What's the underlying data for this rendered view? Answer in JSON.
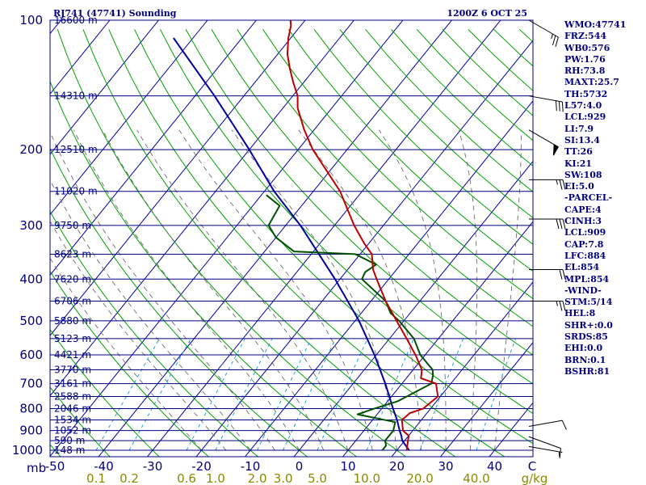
{
  "title": "RJ741 (47741) Sounding",
  "valid_time": "1200Z  6 OCT 25",
  "indices": [
    "WMO:47741",
    "FRZ:544",
    "WB0:576",
    "PW:1.76",
    "RH:73.8",
    "MAXT:25.7",
    "TH:5732",
    "L57:4.0",
    "LCL:929",
    "LI:7.9",
    "SI:13.4",
    "TT:26",
    "KI:21",
    "SW:108",
    "EI:5.0",
    "-PARCEL-",
    "CAPE:4",
    "CINH:3",
    "LCL:909",
    "CAP:7.8",
    "LFC:884",
    "EL:854",
    "MPL:854",
    "-WIND-",
    "STM:5/14",
    "HEL:8",
    "SHR+:0.0",
    "SRDS:85",
    "EHI:0.0",
    "BRN:0.1",
    "BSHR:81"
  ],
  "colors": {
    "frame": "#000080",
    "isobar": "#000080",
    "isotherm": "#0000a0",
    "dry_adiabat": "#00a000",
    "moist_adiabat": "#6b6b6b",
    "mixing_ratio": "#1fa0e0",
    "temperature": "#c00000",
    "dewpoint": "#005000",
    "parcel": "#0000a0",
    "wind": "#000000",
    "mixing_label": "#8a8a00"
  },
  "chart_data": {
    "type": "skew-t log-p",
    "title": "RJ741 (47741) Sounding",
    "x_unit_label": "C",
    "pressure_unit_label": "mb",
    "mixing_unit_label": "g/kg",
    "pressure_levels": [
      1000,
      900,
      800,
      700,
      600,
      500,
      400,
      300,
      200,
      100
    ],
    "pressure_labels": [
      "1000",
      "900",
      "800",
      "700",
      "600",
      "500",
      "400",
      "300",
      "200",
      "100"
    ],
    "height_levels": [
      {
        "p": 1000,
        "label": "148 m"
      },
      {
        "p": 950,
        "label": "590 m"
      },
      {
        "p": 900,
        "label": "1052 m"
      },
      {
        "p": 850,
        "label": "1534 m"
      },
      {
        "p": 800,
        "label": "2046 m"
      },
      {
        "p": 750,
        "label": "2588 m"
      },
      {
        "p": 700,
        "label": "3161 m"
      },
      {
        "p": 650,
        "label": "3770 m"
      },
      {
        "p": 600,
        "label": "4421 m"
      },
      {
        "p": 550,
        "label": "5123 m"
      },
      {
        "p": 500,
        "label": "5880 m"
      },
      {
        "p": 450,
        "label": "6706 m"
      },
      {
        "p": 400,
        "label": "7620 m"
      },
      {
        "p": 350,
        "label": "8623 m"
      },
      {
        "p": 300,
        "label": "9750 m"
      },
      {
        "p": 250,
        "label": "11020 m"
      },
      {
        "p": 200,
        "label": "12510 m"
      },
      {
        "p": 150,
        "label": "14310 m"
      },
      {
        "p": 100,
        "label": "16600 m"
      }
    ],
    "temperature_ticks": [
      -50,
      -40,
      -30,
      -20,
      -10,
      0,
      10,
      20,
      30,
      40
    ],
    "temperature_tick_labels": [
      "-50",
      "-40",
      "-30",
      "-20",
      "-10",
      "0",
      "10",
      "20",
      "30",
      "40"
    ],
    "mixing_ratios": [
      0.1,
      0.2,
      0.6,
      1.0,
      2.0,
      3.0,
      5.0,
      10.0,
      20.0,
      40.0
    ],
    "mixing_ratio_labels": [
      "0.1",
      "0.2",
      "0.6",
      "1.0",
      "2.0",
      "3.0",
      "5.0",
      "10.0",
      "20.0",
      "40.0"
    ],
    "temperature_profile": [
      [
        1000,
        22.0
      ],
      [
        925,
        20.0
      ],
      [
        900,
        18.0
      ],
      [
        850,
        16.0
      ],
      [
        820,
        16.5
      ],
      [
        800,
        18.5
      ],
      [
        750,
        19.5
      ],
      [
        720,
        18.0
      ],
      [
        700,
        17.0
      ],
      [
        680,
        13.0
      ],
      [
        650,
        11.8
      ],
      [
        600,
        8.0
      ],
      [
        550,
        3.5
      ],
      [
        500,
        -1.5
      ],
      [
        450,
        -7.0
      ],
      [
        400,
        -12.5
      ],
      [
        380,
        -14.8
      ],
      [
        350,
        -17.6
      ],
      [
        330,
        -21.0
      ],
      [
        300,
        -26.0
      ],
      [
        250,
        -34.5
      ],
      [
        200,
        -47.0
      ],
      [
        180,
        -52.0
      ],
      [
        160,
        -57.0
      ],
      [
        150,
        -59.0
      ],
      [
        140,
        -62.0
      ],
      [
        130,
        -65.0
      ],
      [
        120,
        -68.0
      ],
      [
        110,
        -70.5
      ],
      [
        103,
        -72.0
      ],
      [
        100,
        -73.0
      ]
    ],
    "dewpoint_profile": [
      [
        1000,
        17.0
      ],
      [
        975,
        17.0
      ],
      [
        950,
        16.0
      ],
      [
        900,
        16.0
      ],
      [
        860,
        15.0
      ],
      [
        825,
        6.0
      ],
      [
        800,
        8.5
      ],
      [
        770,
        12.0
      ],
      [
        700,
        16.0
      ],
      [
        670,
        15.0
      ],
      [
        650,
        14.0
      ],
      [
        600,
        9.0
      ],
      [
        550,
        5.0
      ],
      [
        500,
        -1.0
      ],
      [
        480,
        -4.0
      ],
      [
        450,
        -7.0
      ],
      [
        400,
        -15.5
      ],
      [
        385,
        -16.0
      ],
      [
        370,
        -15.0
      ],
      [
        350,
        -21.0
      ],
      [
        345,
        -34.0
      ],
      [
        320,
        -40.0
      ],
      [
        300,
        -43.5
      ],
      [
        270,
        -44.5
      ],
      [
        255,
        -49.0
      ]
    ],
    "parcel_profile": [
      [
        1000,
        22.5
      ],
      [
        950,
        19.5
      ],
      [
        925,
        18.5
      ],
      [
        900,
        17.3
      ],
      [
        850,
        15.0
      ],
      [
        800,
        12.3
      ],
      [
        700,
        6.6
      ],
      [
        600,
        -0.4
      ],
      [
        500,
        -9.2
      ],
      [
        400,
        -21.0
      ],
      [
        300,
        -37.0
      ],
      [
        250,
        -48.0
      ],
      [
        200,
        -60.0
      ],
      [
        150,
        -76.0
      ],
      [
        110,
        -94.0
      ]
    ],
    "wind_barbs": [
      {
        "p": 980,
        "dir": 280,
        "spd": 5
      },
      {
        "p": 930,
        "dir": 290,
        "spd": 10
      },
      {
        "p": 880,
        "dir": 260,
        "spd": 10
      },
      {
        "p": 450,
        "dir": 270,
        "spd": 25
      },
      {
        "p": 380,
        "dir": 270,
        "spd": 20
      },
      {
        "p": 290,
        "dir": 270,
        "spd": 30
      },
      {
        "p": 235,
        "dir": 270,
        "spd": 25
      },
      {
        "p": 180,
        "dir": 300,
        "spd": 50
      },
      {
        "p": 150,
        "dir": 280,
        "spd": 30
      },
      {
        "p": 100,
        "dir": 300,
        "spd": 25
      }
    ]
  }
}
